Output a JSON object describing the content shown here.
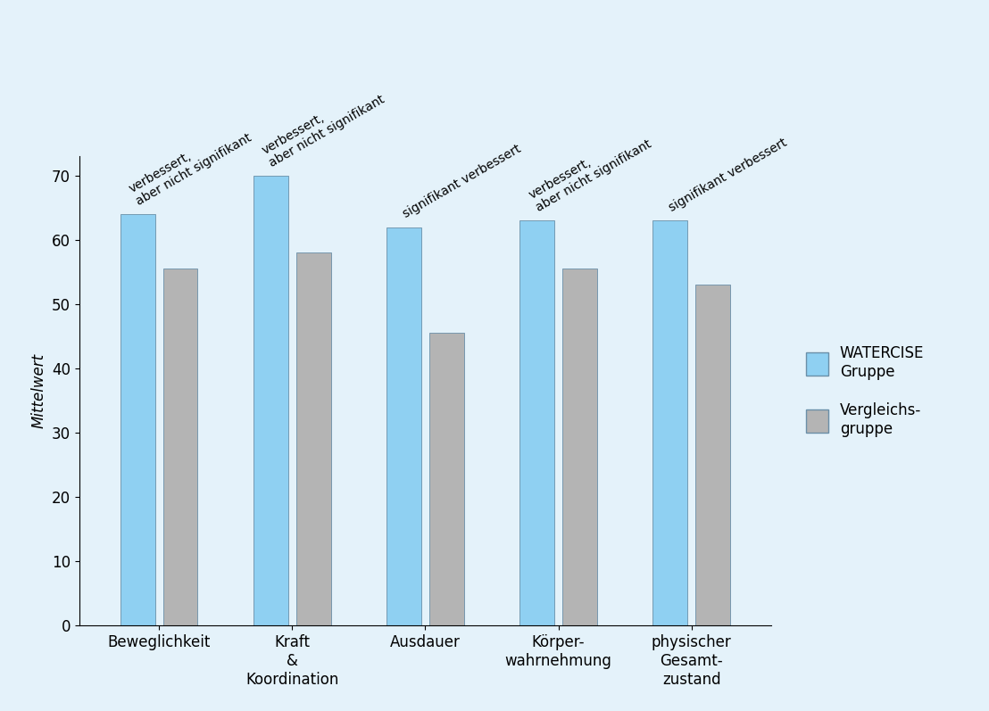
{
  "chart_data": {
    "type": "bar",
    "categories": [
      "Beweglichkeit",
      "Kraft\n&\nKoordination",
      "Ausdauer",
      "Körper-\nwahrnehmung",
      "physischer\nGesamt-\nzustand"
    ],
    "series": [
      {
        "name": "WATERCISE\nGruppe",
        "color": "#8fd0f2",
        "values": [
          64,
          70,
          62,
          63,
          63
        ]
      },
      {
        "name": "Vergleichs-\ngruppe",
        "color": "#b4b4b4",
        "values": [
          55.5,
          58,
          45.5,
          55.5,
          53
        ]
      }
    ],
    "y_label": "Mittelwert",
    "annotations": [
      "verbessert,\naber nicht signifikant",
      "verbessert,\naber nicht signifikant",
      "signifikant verbessert",
      "verbessert,\naber nicht signifikant",
      "signifikant verbessert"
    ],
    "ylim": [
      0,
      73
    ],
    "yticks": [
      0,
      10,
      20,
      30,
      40,
      50,
      60,
      70
    ],
    "legend": "center left",
    "grid": false
  }
}
